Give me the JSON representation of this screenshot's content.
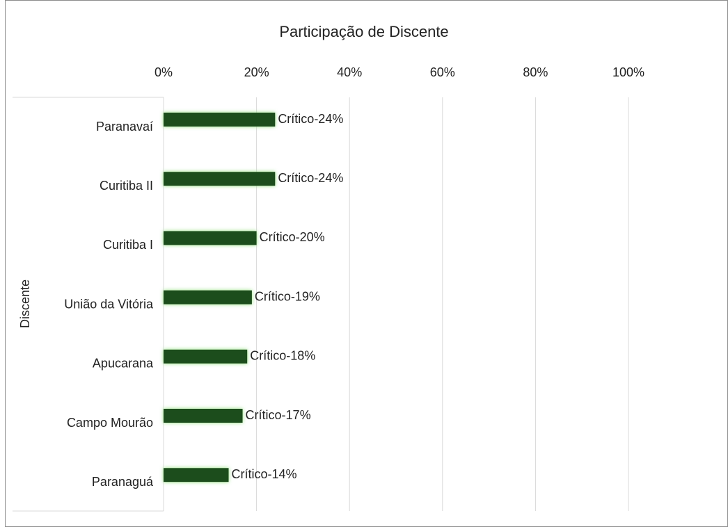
{
  "chart_data": {
    "type": "bar",
    "orientation": "horizontal",
    "title": "Participação de Discente",
    "y_label": "Discente",
    "categories": [
      "Paranavaí",
      "Curitiba II",
      "Curitiba I",
      "União da Vitória",
      "Apucarana",
      "Campo Mourão",
      "Paranaguá"
    ],
    "values": [
      24,
      24,
      20,
      19,
      18,
      17,
      14
    ],
    "value_labels": [
      "Crítico-24%",
      "Crítico-24%",
      "Crítico-20%",
      "Crítico-19%",
      "Crítico-18%",
      "Crítico-17%",
      "Crítico-14%"
    ],
    "color": "#1b4d1b",
    "xlim": [
      0,
      100
    ],
    "xticks": [
      {
        "value": 0,
        "label": "0%"
      },
      {
        "value": 20,
        "label": "20%"
      },
      {
        "value": 40,
        "label": "40%"
      },
      {
        "value": 60,
        "label": "60%"
      },
      {
        "value": 80,
        "label": "80%"
      },
      {
        "value": 100,
        "label": "100%"
      }
    ],
    "grid": true
  }
}
